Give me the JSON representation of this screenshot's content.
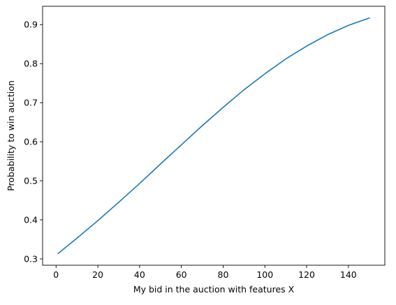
{
  "chart_data": {
    "type": "line",
    "title": "",
    "xlabel": "My bid in the auction with features X",
    "ylabel": "Probability to win auction",
    "xlim": [
      -6.45,
      157.45
    ],
    "ylim": [
      0.2838,
      0.9469
    ],
    "xticks": [
      0,
      20,
      40,
      60,
      80,
      100,
      120,
      140
    ],
    "yticks": [
      0.3,
      0.4,
      0.5,
      0.6,
      0.7,
      0.8,
      0.9
    ],
    "ytick_labels": [
      "0.3",
      "0.4",
      "0.5",
      "0.6",
      "0.7",
      "0.8",
      "0.9"
    ],
    "grid": false,
    "legend": "none",
    "series": [
      {
        "color": "#1f77b4",
        "x": [
          1,
          10,
          20,
          30,
          40,
          50,
          60,
          70,
          80,
          90,
          100,
          110,
          120,
          130,
          140,
          150
        ],
        "y": [
          0.314,
          0.353,
          0.398,
          0.445,
          0.493,
          0.543,
          0.592,
          0.641,
          0.688,
          0.733,
          0.774,
          0.812,
          0.845,
          0.874,
          0.898,
          0.917
        ]
      }
    ]
  }
}
